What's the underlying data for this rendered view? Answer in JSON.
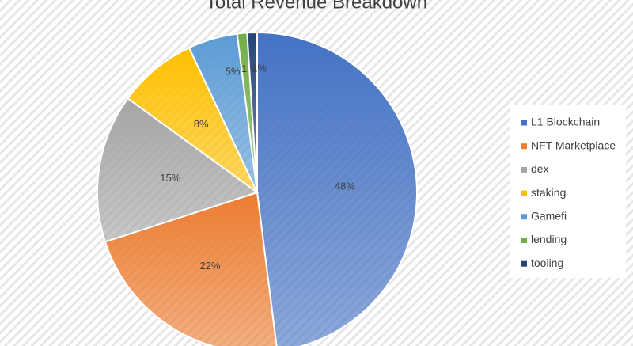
{
  "chart_data": {
    "type": "pie",
    "title": "Total Revenue Breakdown",
    "categories": [
      "L1 Blockchain",
      "NFT Marketplace",
      "dex",
      "staking",
      "Gamefi",
      "lending",
      "tooling"
    ],
    "values": [
      48,
      22,
      15,
      8,
      5,
      1,
      1
    ],
    "value_labels": [
      "48%",
      "22%",
      "15%",
      "8%",
      "5%",
      "1%",
      "1%"
    ],
    "colors": [
      "#4472c4",
      "#ed7d31",
      "#a5a5a5",
      "#ffc000",
      "#5b9bd5",
      "#70ad47",
      "#264478"
    ],
    "legend": "right"
  }
}
